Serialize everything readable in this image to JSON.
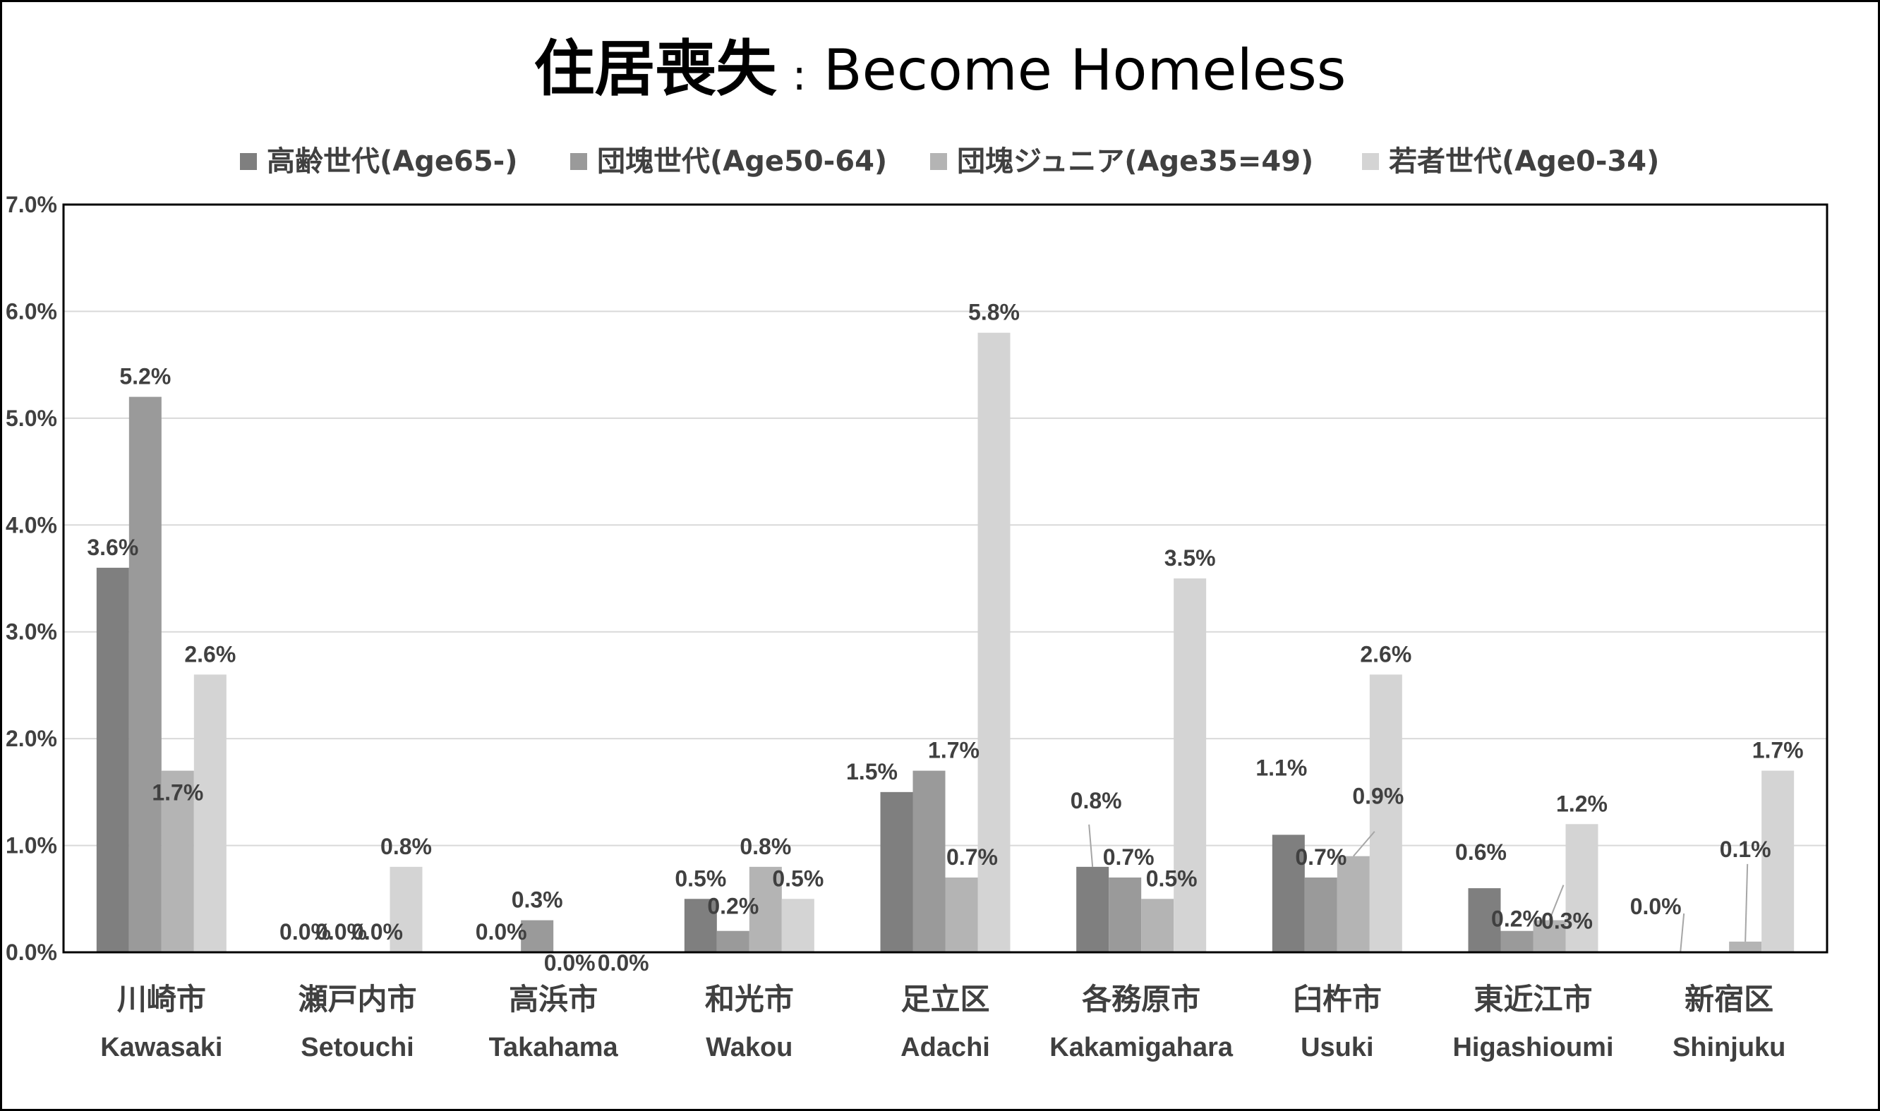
{
  "chart_data": {
    "type": "bar",
    "title": {
      "jp": "住居喪失",
      "sep": ":",
      "en": "Become Homeless"
    },
    "xlabel": "",
    "ylabel": "",
    "ylim": [
      0,
      7.0
    ],
    "yticks": [
      "0.0%",
      "1.0%",
      "2.0%",
      "3.0%",
      "4.0%",
      "5.0%",
      "6.0%",
      "7.0%"
    ],
    "grid": true,
    "legend_position": "top",
    "categories": [
      {
        "jp": "川崎市",
        "en": "Kawasaki"
      },
      {
        "jp": "瀬戸内市",
        "en": "Setouchi"
      },
      {
        "jp": "高浜市",
        "en": "Takahama"
      },
      {
        "jp": "和光市",
        "en": "Wakou"
      },
      {
        "jp": "足立区",
        "en": "Adachi"
      },
      {
        "jp": "各務原市",
        "en": "Kakamigahara"
      },
      {
        "jp": "臼杵市",
        "en": "Usuki"
      },
      {
        "jp": "東近江市",
        "en": "Higashioumi"
      },
      {
        "jp": "新宿区",
        "en": "Shinjuku"
      }
    ],
    "series": [
      {
        "name": "高齢世代(Age65-)",
        "color": "#7f7f7f",
        "values": [
          3.6,
          0.0,
          0.0,
          0.5,
          1.5,
          0.8,
          1.1,
          0.6,
          0.0
        ],
        "labels": [
          "3.6%",
          "0.0%",
          "0.0%",
          "0.5%",
          "1.5%",
          "0.8%",
          "1.1%",
          "0.6%",
          "0.0%"
        ]
      },
      {
        "name": "団塊世代(Age50-64)",
        "color": "#9a9a9a",
        "values": [
          5.2,
          0.0,
          0.3,
          0.2,
          1.7,
          0.7,
          0.7,
          0.2,
          0.0
        ],
        "labels": [
          "5.2%",
          "0.0%",
          "0.3%",
          "0.2%",
          "1.7%",
          "0.7%",
          "0.7%",
          "0.2%",
          ""
        ]
      },
      {
        "name": "団塊ジュニア(Age35=49)",
        "color": "#b4b4b4",
        "values": [
          1.7,
          0.0,
          0.0,
          0.8,
          0.7,
          0.5,
          0.9,
          0.3,
          0.1
        ],
        "labels": [
          "1.7%",
          "0.0%",
          "0.0%",
          "0.8%",
          "0.7%",
          "0.5%",
          "0.9%",
          "0.3%",
          "0.1%"
        ]
      },
      {
        "name": "若者世代(Age0-34)",
        "color": "#d4d4d4",
        "values": [
          2.6,
          0.8,
          0.0,
          0.5,
          5.8,
          3.5,
          2.6,
          1.2,
          1.7
        ],
        "labels": [
          "2.6%",
          "0.8%",
          "0.0%",
          "0.5%",
          "5.8%",
          "3.5%",
          "2.6%",
          "1.2%",
          "1.7%"
        ]
      }
    ]
  }
}
